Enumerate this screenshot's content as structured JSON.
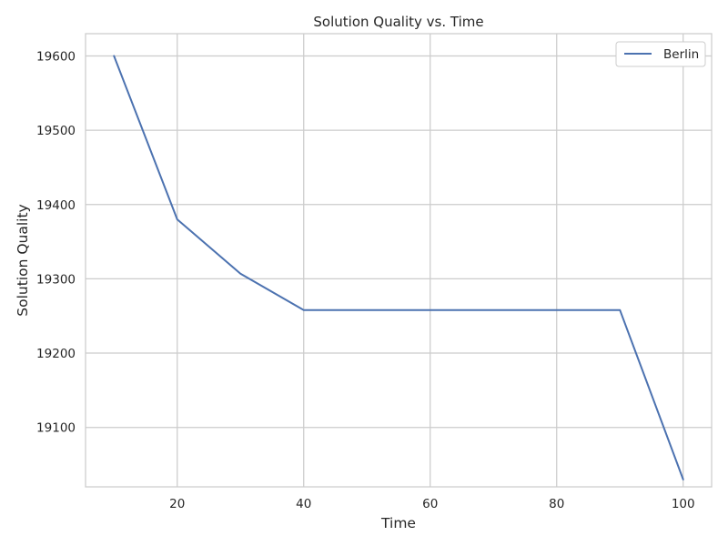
{
  "chart_data": {
    "type": "line",
    "title": "Solution Quality vs. Time",
    "xlabel": "Time",
    "ylabel": "Solution Quality",
    "xlim": [
      5.5,
      104.5
    ],
    "ylim": [
      19020,
      19630
    ],
    "xticks": [
      20,
      40,
      60,
      80,
      100
    ],
    "yticks": [
      19100,
      19200,
      19300,
      19400,
      19500,
      19600
    ],
    "grid": true,
    "legend": "top-right",
    "series": [
      {
        "name": "Berlin",
        "color": "#4c72b0",
        "x": [
          10,
          20,
          30,
          40,
          50,
          60,
          70,
          80,
          90,
          100
        ],
        "y": [
          19600,
          19380,
          19307,
          19258,
          19258,
          19258,
          19258,
          19258,
          19258,
          19030
        ]
      }
    ]
  }
}
